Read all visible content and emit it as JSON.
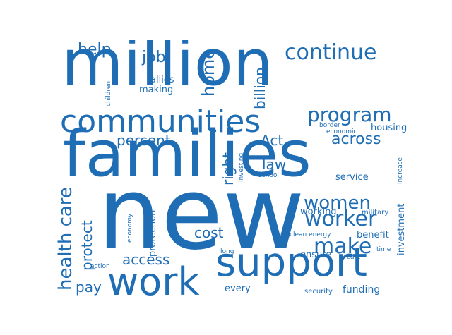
{
  "accent_color": "#1f6eb5",
  "background_color": "#ffffff",
  "words": {
    "new": "new",
    "families": "families",
    "million": "million",
    "support": "support",
    "work": "work",
    "communities": "communities",
    "continue": "continue",
    "program": "program",
    "health_care": "health care",
    "women": "women",
    "worker": "worker",
    "make": "make",
    "across": "across",
    "home": "home",
    "billion": "billion",
    "help": "help",
    "job": "job",
    "percent": "percent",
    "act": "Act",
    "right": "right",
    "law": "law",
    "protect": "protect",
    "access": "access",
    "cost": "cost",
    "pay": "pay",
    "allies": "allies",
    "making": "making",
    "children": "children",
    "border": "border",
    "economic": "economic",
    "housing": "housing",
    "increase": "increase",
    "investing": "investing",
    "school": "school",
    "service": "service",
    "working": "working",
    "military": "military",
    "clean_energy": "clean energy",
    "benefit": "benefit",
    "investment": "investment",
    "ensure": "ensure",
    "care": "care",
    "time": "time",
    "long": "long",
    "economy": "economy",
    "protection": "protection",
    "action": "action",
    "every": "every",
    "security": "security",
    "funding": "funding"
  }
}
